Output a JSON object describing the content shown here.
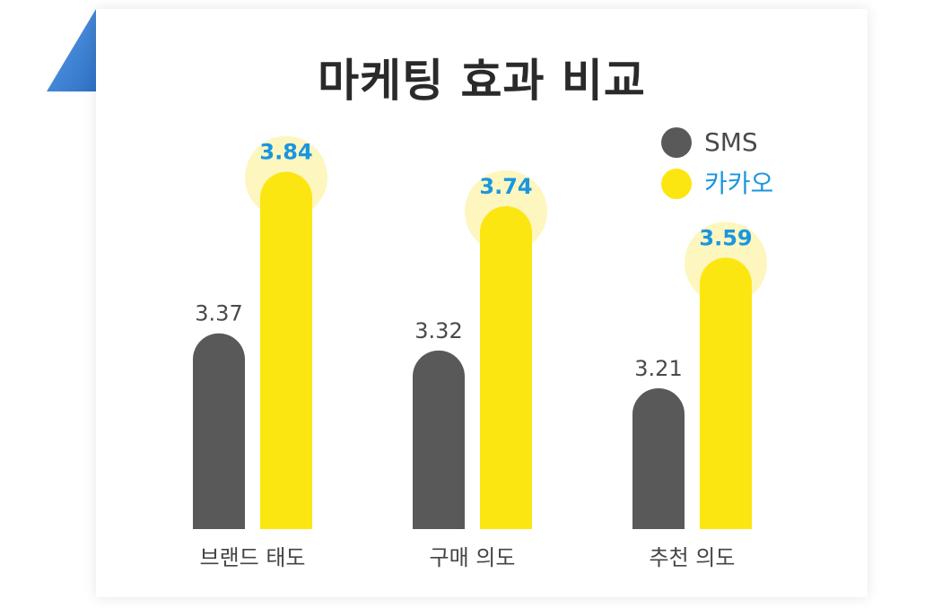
{
  "colors": {
    "sms": "#595959",
    "kakao": "#fce611",
    "kakao_glow": "#fdf6bf",
    "kakao_label": "#1a96e0",
    "sms_label": "#4a4a4a",
    "category_label": "#444444",
    "corner": "#3d7fd0"
  },
  "chart_data": {
    "type": "bar",
    "title": "마케팅 효과 비교",
    "categories": [
      "브랜드 태도",
      "구매 의도",
      "추천 의도"
    ],
    "series": [
      {
        "name": "SMS",
        "values": [
          3.37,
          3.32,
          3.21
        ],
        "labels": [
          "3.37",
          "3.32",
          "3.21"
        ]
      },
      {
        "name": "카카오",
        "values": [
          3.84,
          3.74,
          3.59
        ],
        "labels": [
          "3.84",
          "3.74",
          "3.59"
        ]
      }
    ],
    "legend_position": "top-right",
    "grid": false
  }
}
